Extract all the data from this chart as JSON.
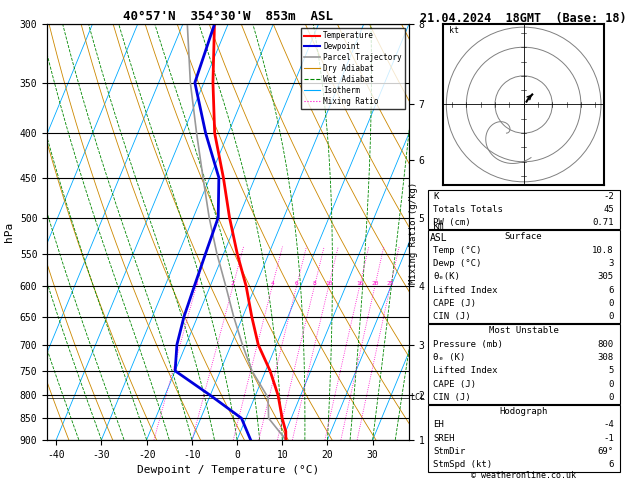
{
  "title": "40°57'N  354°30'W  853m  ASL",
  "date_title": "21.04.2024  18GMT  (Base: 18)",
  "xlabel": "Dewpoint / Temperature (°C)",
  "ylabel_left": "hPa",
  "copyright": "© weatheronline.co.uk",
  "xlim": [
    -42,
    38
  ],
  "pressure_ticks": [
    300,
    350,
    400,
    450,
    500,
    550,
    600,
    650,
    700,
    750,
    800,
    850,
    900
  ],
  "temp_color": "#ff0000",
  "dewp_color": "#0000dd",
  "parcel_color": "#999999",
  "dry_adiabat_color": "#cc8800",
  "wet_adiabat_color": "#008800",
  "isotherm_color": "#00aaff",
  "mixing_ratio_color": "#ff00cc",
  "background_color": "#ffffff",
  "lcl_pressure": 805,
  "km_ticks": [
    1,
    2,
    3,
    4,
    5,
    6,
    7,
    8
  ],
  "km_pressures": [
    900,
    800,
    700,
    600,
    500,
    430,
    370,
    300
  ],
  "mixing_ratio_values": [
    1,
    2,
    4,
    6,
    8,
    10,
    16,
    20,
    25
  ],
  "info_K": "-2",
  "info_TT": "45",
  "info_PW": "0.71",
  "info_surf_temp": "10.8",
  "info_surf_dewp": "3",
  "info_surf_theta": "305",
  "info_surf_LI": "6",
  "info_surf_CAPE": "0",
  "info_surf_CIN": "0",
  "info_mu_press": "800",
  "info_mu_theta": "308",
  "info_mu_LI": "5",
  "info_mu_CAPE": "0",
  "info_mu_CIN": "0",
  "info_EH": "-4",
  "info_SREH": "-1",
  "info_StmDir": "69°",
  "info_StmSpd": "6",
  "temp_profile_p": [
    900,
    880,
    850,
    800,
    750,
    700,
    650,
    600,
    550,
    500,
    450,
    400,
    350,
    300
  ],
  "temp_profile_t": [
    10.8,
    10.0,
    8.0,
    5.0,
    1.0,
    -4.0,
    -8.0,
    -12.0,
    -17.0,
    -22.0,
    -27.0,
    -33.0,
    -38.0,
    -43.0
  ],
  "dewp_profile_p": [
    900,
    850,
    800,
    750,
    700,
    650,
    600,
    550,
    500,
    450,
    400,
    350,
    300
  ],
  "dewp_profile_t": [
    3.0,
    -1.0,
    -10.0,
    -20.0,
    -22.0,
    -23.0,
    -23.5,
    -24.0,
    -24.5,
    -28.0,
    -35.0,
    -42.0,
    -43.0
  ],
  "parcel_profile_p": [
    900,
    850,
    805,
    750,
    700,
    650,
    600,
    550,
    500,
    450,
    400,
    350,
    300
  ],
  "parcel_profile_t": [
    10.8,
    5.0,
    3.0,
    -3.0,
    -7.5,
    -12.0,
    -16.5,
    -21.5,
    -26.5,
    -31.5,
    -37.0,
    -43.0,
    -49.0
  ],
  "pmax": 900,
  "pmin": 300,
  "skew": 38
}
